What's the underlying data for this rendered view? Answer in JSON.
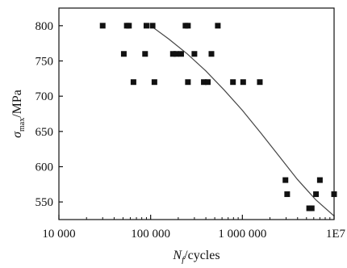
{
  "chart_data": {
    "type": "scatter",
    "title": "",
    "xlabel_main": "N",
    "xlabel_sub": "f",
    "xlabel_rest": "/cycles",
    "ylabel_main": "σ",
    "ylabel_sub": "max",
    "ylabel_rest": "/MPa",
    "x_scale": "log",
    "xlim": [
      10000,
      10000000
    ],
    "ylim": [
      525,
      825
    ],
    "x_ticks": [
      {
        "value": 10000,
        "label": "10 000"
      },
      {
        "value": 100000,
        "label": "100 000"
      },
      {
        "value": 1000000,
        "label": "1 000 000"
      },
      {
        "value": 10000000,
        "label": "1E7"
      }
    ],
    "y_ticks": [
      {
        "value": 550,
        "label": "550"
      },
      {
        "value": 600,
        "label": "600"
      },
      {
        "value": 650,
        "label": "650"
      },
      {
        "value": 700,
        "label": "700"
      },
      {
        "value": 750,
        "label": "750"
      },
      {
        "value": 800,
        "label": "800"
      }
    ],
    "grid": false,
    "legend": "none",
    "marker_color": "#111111",
    "curve_color": "#444444",
    "points": [
      {
        "x": 30000,
        "y": 800
      },
      {
        "x": 55000,
        "y": 800
      },
      {
        "x": 58000,
        "y": 800
      },
      {
        "x": 90000,
        "y": 800
      },
      {
        "x": 105000,
        "y": 800
      },
      {
        "x": 240000,
        "y": 800
      },
      {
        "x": 255000,
        "y": 800
      },
      {
        "x": 540000,
        "y": 800
      },
      {
        "x": 51000,
        "y": 760
      },
      {
        "x": 87000,
        "y": 760
      },
      {
        "x": 175000,
        "y": 760
      },
      {
        "x": 190000,
        "y": 760
      },
      {
        "x": 215000,
        "y": 760
      },
      {
        "x": 300000,
        "y": 760
      },
      {
        "x": 460000,
        "y": 760
      },
      {
        "x": 65000,
        "y": 720
      },
      {
        "x": 110000,
        "y": 720
      },
      {
        "x": 255000,
        "y": 720
      },
      {
        "x": 380000,
        "y": 720
      },
      {
        "x": 420000,
        "y": 720
      },
      {
        "x": 790000,
        "y": 720
      },
      {
        "x": 1020000,
        "y": 720
      },
      {
        "x": 1550000,
        "y": 720
      },
      {
        "x": 2950000,
        "y": 581
      },
      {
        "x": 3080000,
        "y": 561
      },
      {
        "x": 5350000,
        "y": 541
      },
      {
        "x": 5700000,
        "y": 541
      },
      {
        "x": 6350000,
        "y": 561
      },
      {
        "x": 7000000,
        "y": 581
      },
      {
        "x": 10000000,
        "y": 561
      }
    ],
    "fit_curve": [
      {
        "x": 100000,
        "y": 800
      },
      {
        "x": 158000,
        "y": 781
      },
      {
        "x": 251000,
        "y": 760
      },
      {
        "x": 398000,
        "y": 736
      },
      {
        "x": 631000,
        "y": 709
      },
      {
        "x": 1000000,
        "y": 680
      },
      {
        "x": 1585000,
        "y": 648
      },
      {
        "x": 2512000,
        "y": 615
      },
      {
        "x": 3981000,
        "y": 582
      },
      {
        "x": 6310000,
        "y": 553
      },
      {
        "x": 10000000,
        "y": 530
      }
    ]
  }
}
